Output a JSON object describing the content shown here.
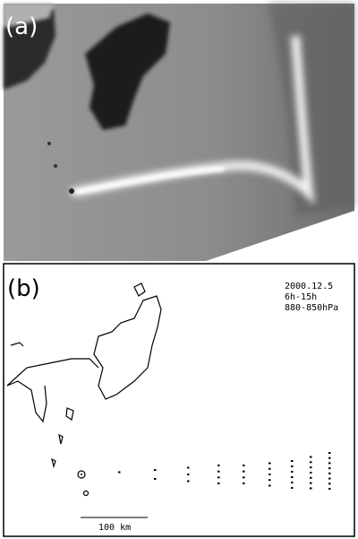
{
  "panel_a": {
    "label": "(a)"
  },
  "panel_b": {
    "label": "(b)",
    "date": "2000.12.5",
    "time": "6h-15h",
    "pressure": "880-850hPa",
    "scale_bar": "100 km"
  }
}
